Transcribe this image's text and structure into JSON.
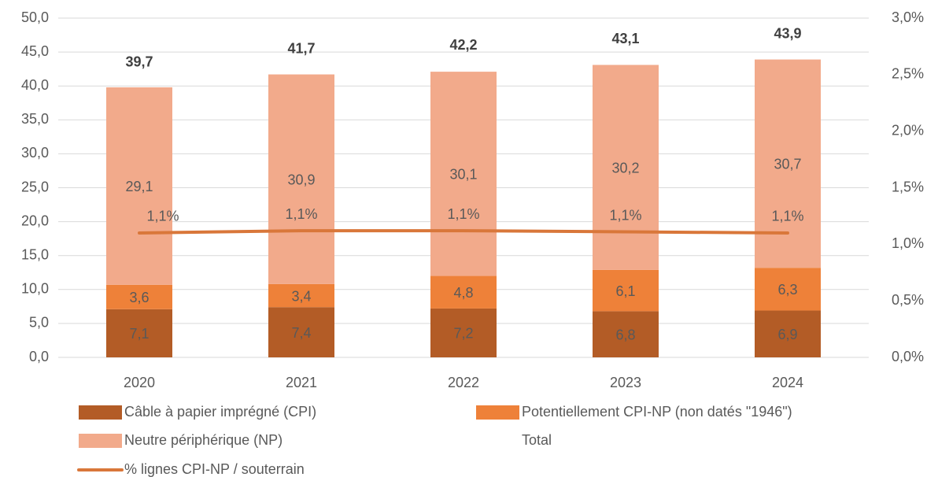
{
  "chart_data": {
    "type": "stacked-bar-line",
    "categories": [
      "2020",
      "2021",
      "2022",
      "2023",
      "2024"
    ],
    "series": [
      {
        "name": "Câble à papier imprégné (CPI)",
        "color": "#b35c26",
        "values": [
          7.1,
          7.4,
          7.2,
          6.8,
          6.9
        ],
        "value_labels": [
          "7,1",
          "7,4",
          "7,2",
          "6,8",
          "6,9"
        ]
      },
      {
        "name": "Potentiellement CPI-NP (non datés \"1946\")",
        "color": "#ee8139",
        "values": [
          3.6,
          3.4,
          4.8,
          6.1,
          6.3
        ],
        "value_labels": [
          "3,6",
          "3,4",
          "4,8",
          "6,1",
          "6,3"
        ]
      },
      {
        "name": "Neutre périphérique (NP)",
        "color": "#f2aa8b",
        "values": [
          29.1,
          30.9,
          30.1,
          30.2,
          30.7
        ],
        "value_labels": [
          "29,1",
          "30,9",
          "30,1",
          "30,2",
          "30,7"
        ]
      },
      {
        "name": "Total",
        "values": [
          39.7,
          41.7,
          42.2,
          43.1,
          43.9
        ],
        "value_labels": [
          "39,7",
          "41,7",
          "42,2",
          "43,1",
          "43,9"
        ]
      },
      {
        "name": "% lignes CPI-NP / souterrain",
        "color": "#d9773a",
        "axis": "y2",
        "values": [
          1.1,
          1.12,
          1.12,
          1.11,
          1.1
        ],
        "value_labels": [
          "1,1%",
          "1,1%",
          "1,1%",
          "1,1%",
          "1,1%"
        ]
      }
    ],
    "ylim": [
      0,
      50
    ],
    "yticks": [
      {
        "value": 0,
        "label": "0,0"
      },
      {
        "value": 5,
        "label": "5,0"
      },
      {
        "value": 10,
        "label": "10,0"
      },
      {
        "value": 15,
        "label": "15,0"
      },
      {
        "value": 20,
        "label": "20,0"
      },
      {
        "value": 25,
        "label": "25,0"
      },
      {
        "value": 30,
        "label": "30,0"
      },
      {
        "value": 35,
        "label": "35,0"
      },
      {
        "value": 40,
        "label": "40,0"
      },
      {
        "value": 45,
        "label": "45,0"
      },
      {
        "value": 50,
        "label": "50,0"
      }
    ],
    "y2lim": [
      0,
      3
    ],
    "y2ticks": [
      {
        "value": 0,
        "label": "0,0%"
      },
      {
        "value": 0.5,
        "label": "0,5%"
      },
      {
        "value": 1,
        "label": "1,0%"
      },
      {
        "value": 1.5,
        "label": "1,5%"
      },
      {
        "value": 2,
        "label": "2,0%"
      },
      {
        "value": 2.5,
        "label": "2,5%"
      },
      {
        "value": 3,
        "label": "3,0%"
      }
    ],
    "grid": true
  }
}
